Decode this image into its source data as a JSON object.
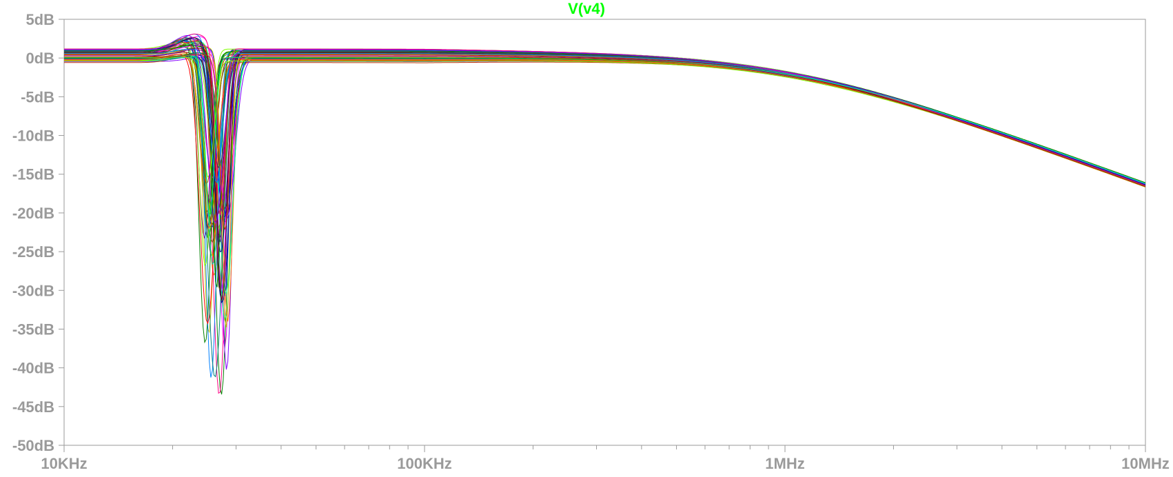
{
  "chart_data": {
    "type": "line",
    "title": "V(v4)",
    "x_scale": "log",
    "xlim": [
      "10KHz",
      "10MHz"
    ],
    "xlim_hz": [
      10000,
      10000000
    ],
    "ylim": [
      -50,
      5
    ],
    "yunit": "dB",
    "grid": false,
    "x_ticks": [
      {
        "label": "10KHz",
        "value": 10000
      },
      {
        "label": "100KHz",
        "value": 100000
      },
      {
        "label": "1MHz",
        "value": 1000000
      },
      {
        "label": "10MHz",
        "value": 10000000
      }
    ],
    "y_ticks": [
      {
        "label": "5dB",
        "value": 5
      },
      {
        "label": "0dB",
        "value": 0
      },
      {
        "label": "-5dB",
        "value": -5
      },
      {
        "label": "-10dB",
        "value": -10
      },
      {
        "label": "-15dB",
        "value": -15
      },
      {
        "label": "-20dB",
        "value": -20
      },
      {
        "label": "-25dB",
        "value": -25
      },
      {
        "label": "-30dB",
        "value": -30
      },
      {
        "label": "-35dB",
        "value": -35
      },
      {
        "label": "-40dB",
        "value": -40
      },
      {
        "label": "-45dB",
        "value": -45
      },
      {
        "label": "-50dB",
        "value": -50
      }
    ],
    "series_count": 60,
    "notch_freq_range_hz": [
      24500,
      28500
    ],
    "notch_depth_range_db": [
      -47.5,
      -15
    ],
    "rolloff_value_at_10MHz_db": -21.6,
    "series_colors": [
      "#0000ff",
      "#ff0000",
      "#00aa00",
      "#ff00ff",
      "#00c8c8",
      "#c8c800",
      "#800080",
      "#808000",
      "#008080",
      "#ff8000",
      "#000080",
      "#800000",
      "#008000",
      "#404040",
      "#ff0080",
      "#0080ff",
      "#80ff00",
      "#8000ff",
      "#00ff80",
      "#c04000"
    ]
  }
}
